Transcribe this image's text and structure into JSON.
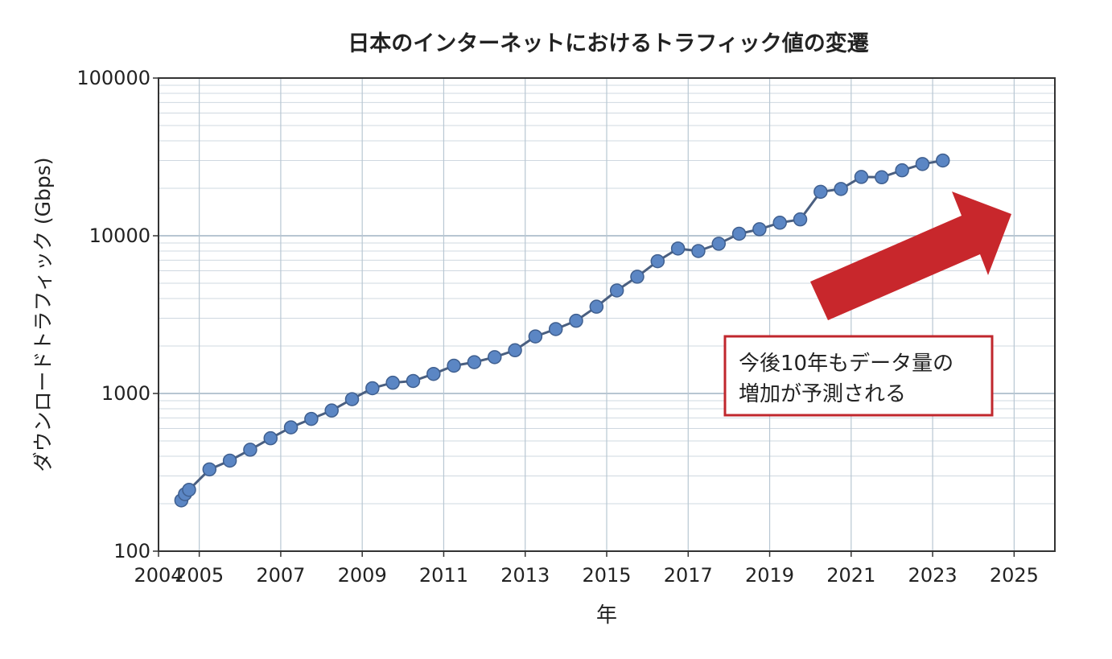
{
  "chart_data": {
    "type": "line",
    "title": "日本のインターネットにおけるトラフィック値の変遷",
    "xlabel": "年",
    "ylabel": "ダウンロードトラフィック (Gbps)",
    "x_scale": "linear",
    "y_scale": "log",
    "xlim": [
      2004,
      2026
    ],
    "ylim": [
      100,
      100000
    ],
    "x_ticks": [
      2004,
      2005,
      2007,
      2009,
      2011,
      2013,
      2015,
      2017,
      2019,
      2021,
      2023,
      2025
    ],
    "x_tick_labels": [
      "2004",
      "2005",
      "2007",
      "2009",
      "2011",
      "2013",
      "2015",
      "2017",
      "2019",
      "2021",
      "2023",
      "2025"
    ],
    "y_ticks": [
      100,
      1000,
      10000,
      100000
    ],
    "y_tick_labels": [
      "100",
      "1000",
      "10000",
      "100000"
    ],
    "grid": true,
    "series": [
      {
        "color": "#5b86c4",
        "line_color": "#4a5f80",
        "points": [
          {
            "x": 2004.56,
            "y": 210
          },
          {
            "x": 2004.65,
            "y": 230
          },
          {
            "x": 2004.75,
            "y": 245
          },
          {
            "x": 2005.25,
            "y": 330
          },
          {
            "x": 2005.75,
            "y": 375
          },
          {
            "x": 2006.25,
            "y": 440
          },
          {
            "x": 2006.75,
            "y": 520
          },
          {
            "x": 2007.25,
            "y": 610
          },
          {
            "x": 2007.75,
            "y": 690
          },
          {
            "x": 2008.25,
            "y": 780
          },
          {
            "x": 2008.75,
            "y": 920
          },
          {
            "x": 2009.25,
            "y": 1080
          },
          {
            "x": 2009.75,
            "y": 1170
          },
          {
            "x": 2010.25,
            "y": 1200
          },
          {
            "x": 2010.75,
            "y": 1330
          },
          {
            "x": 2011.25,
            "y": 1500
          },
          {
            "x": 2011.75,
            "y": 1580
          },
          {
            "x": 2012.25,
            "y": 1700
          },
          {
            "x": 2012.75,
            "y": 1880
          },
          {
            "x": 2013.25,
            "y": 2300
          },
          {
            "x": 2013.75,
            "y": 2560
          },
          {
            "x": 2014.25,
            "y": 2890
          },
          {
            "x": 2014.75,
            "y": 3550
          },
          {
            "x": 2015.25,
            "y": 4500
          },
          {
            "x": 2015.75,
            "y": 5500
          },
          {
            "x": 2016.25,
            "y": 6900
          },
          {
            "x": 2016.75,
            "y": 8300
          },
          {
            "x": 2017.25,
            "y": 8000
          },
          {
            "x": 2017.75,
            "y": 8900
          },
          {
            "x": 2018.25,
            "y": 10300
          },
          {
            "x": 2018.75,
            "y": 11000
          },
          {
            "x": 2019.25,
            "y": 12100
          },
          {
            "x": 2019.75,
            "y": 12700
          },
          {
            "x": 2020.25,
            "y": 19000
          },
          {
            "x": 2020.75,
            "y": 19800
          },
          {
            "x": 2021.25,
            "y": 23600
          },
          {
            "x": 2021.75,
            "y": 23500
          },
          {
            "x": 2022.25,
            "y": 26000
          },
          {
            "x": 2022.75,
            "y": 28500
          },
          {
            "x": 2023.25,
            "y": 30000
          }
        ]
      }
    ],
    "annotations": [
      {
        "type": "text-box",
        "lines": [
          "今後10年もデータ量の",
          "増加が予測される"
        ],
        "border_color": "#c0272d"
      },
      {
        "type": "arrow",
        "color": "#c8272c",
        "direction": "up-right"
      }
    ]
  }
}
